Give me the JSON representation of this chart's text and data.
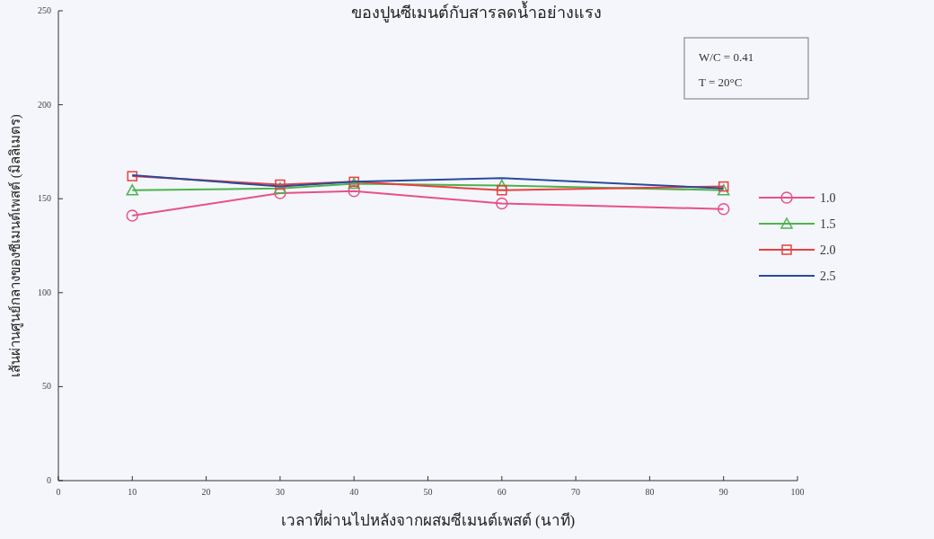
{
  "chart_data": {
    "type": "line",
    "title": "ของปูนซีเมนต์กับสารลดน้ำอย่างแรง",
    "xlabel": "เวลาที่ผ่านไปหลังจากผสมซีเมนต์เพสต์ (นาที)",
    "ylabel": "เส้นผ่านศูนย์กลางของซีเมนต์เพสต์ (มิลลิเมตร)",
    "annotations": [
      "W/C = 0.41",
      "T = 20°C"
    ],
    "x": [
      10,
      30,
      40,
      60,
      90
    ],
    "series": [
      {
        "name": "1.0",
        "color": "#e8508a",
        "marker": "circle",
        "values": [
          141,
          153,
          154,
          147.5,
          144.5
        ]
      },
      {
        "name": "1.5",
        "color": "#4db34d",
        "marker": "triangle",
        "values": [
          154.5,
          155.5,
          158,
          157,
          154.5
        ]
      },
      {
        "name": "2.0",
        "color": "#e84040",
        "marker": "square",
        "values": [
          162,
          157.5,
          159,
          154.5,
          156.5
        ]
      },
      {
        "name": "2.5",
        "color": "#2a4a9a",
        "marker": "none",
        "values": [
          162.5,
          156.5,
          159,
          161,
          155.5
        ]
      }
    ],
    "xlim": [
      0,
      100
    ],
    "xticks": [
      0,
      10,
      20,
      30,
      40,
      50,
      60,
      70,
      80,
      90,
      100
    ],
    "ylim": [
      0,
      250
    ],
    "yticks": [
      0,
      50,
      100,
      150,
      200,
      250
    ],
    "grid": false,
    "legend": "right"
  }
}
